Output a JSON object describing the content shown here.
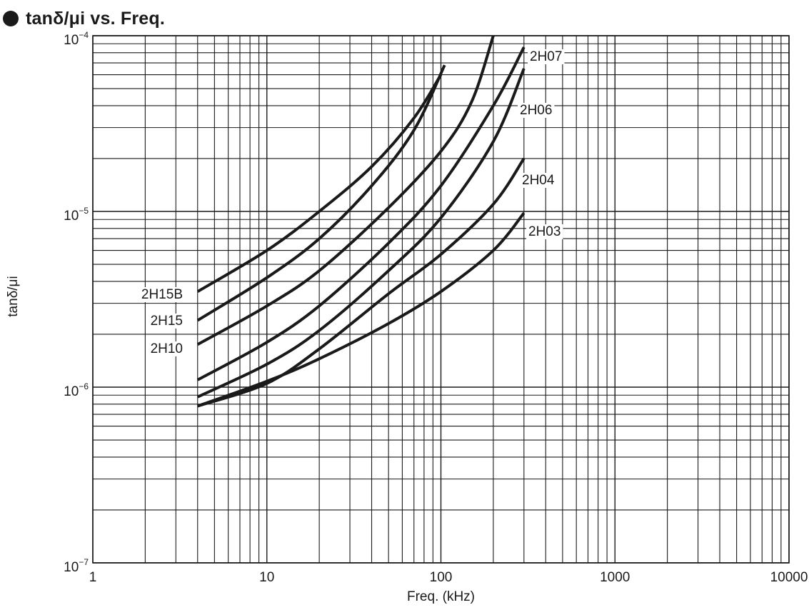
{
  "title": "tanδ/μi vs. Freq.",
  "chart_data": {
    "type": "line",
    "title": "tanδ/μi vs. Freq.",
    "xlabel": "Freq.  (kHz)",
    "ylabel": "tanδ/μi",
    "xscale": "log",
    "yscale": "log",
    "xlim": [
      1,
      10000
    ],
    "ylim": [
      1e-07,
      0.0001
    ],
    "grid": true,
    "x_tick_labels": [
      "1",
      "10",
      "100",
      "1000",
      "10000"
    ],
    "y_tick_labels": [
      {
        "base": "10",
        "exp": "−7"
      },
      {
        "base": "10",
        "exp": "−6"
      },
      {
        "base": "10",
        "exp": "−5"
      },
      {
        "base": "10",
        "exp": "−4"
      }
    ],
    "series": [
      {
        "name": "2H15B",
        "x": [
          4,
          10,
          20,
          40,
          70,
          100
        ],
        "y": [
          3.5e-06,
          6e-06,
          1e-05,
          1.8e-05,
          3.4e-05,
          6e-05
        ]
      },
      {
        "name": "2H15",
        "x": [
          4,
          10,
          20,
          40,
          70,
          105
        ],
        "y": [
          2.4e-06,
          4.2e-06,
          7e-06,
          1.4e-05,
          2.9e-05,
          6.8e-05
        ]
      },
      {
        "name": "2H10",
        "x": [
          4,
          10,
          20,
          50,
          100,
          150,
          200
        ],
        "y": [
          1.75e-06,
          2.9e-06,
          4.6e-06,
          1.05e-05,
          2.2e-05,
          4.2e-05,
          0.0001
        ]
      },
      {
        "name": "2H07",
        "x": [
          4,
          10,
          20,
          50,
          100,
          200,
          300
        ],
        "y": [
          1.1e-06,
          1.8e-06,
          2.9e-06,
          6.6e-06,
          1.4e-05,
          4e-05,
          8.6e-05
        ]
      },
      {
        "name": "2H06",
        "x": [
          4,
          10,
          20,
          50,
          100,
          200,
          300
        ],
        "y": [
          8.8e-07,
          1.35e-06,
          2.1e-06,
          4.6e-06,
          9.2e-06,
          2.5e-05,
          6.5e-05
        ]
      },
      {
        "name": "2H04",
        "x": [
          4,
          10,
          20,
          50,
          100,
          200,
          300
        ],
        "y": [
          7.8e-07,
          1.05e-06,
          1.65e-06,
          3.4e-06,
          5.7e-06,
          1.1e-05,
          2e-05
        ]
      },
      {
        "name": "2H03",
        "x": [
          4,
          10,
          20,
          50,
          100,
          200,
          300
        ],
        "y": [
          7.8e-07,
          1.08e-06,
          1.45e-06,
          2.3e-06,
          3.5e-06,
          6e-06,
          9.8e-06
        ]
      }
    ],
    "curve_labels": [
      {
        "text": "2H15B",
        "series": "2H15B"
      },
      {
        "text": "2H15",
        "series": "2H15"
      },
      {
        "text": "2H10",
        "series": "2H10"
      },
      {
        "text": "2H07",
        "series": "2H07"
      },
      {
        "text": "2H06",
        "series": "2H06"
      },
      {
        "text": "2H04",
        "series": "2H04"
      },
      {
        "text": "2H03",
        "series": "2H03"
      }
    ]
  }
}
